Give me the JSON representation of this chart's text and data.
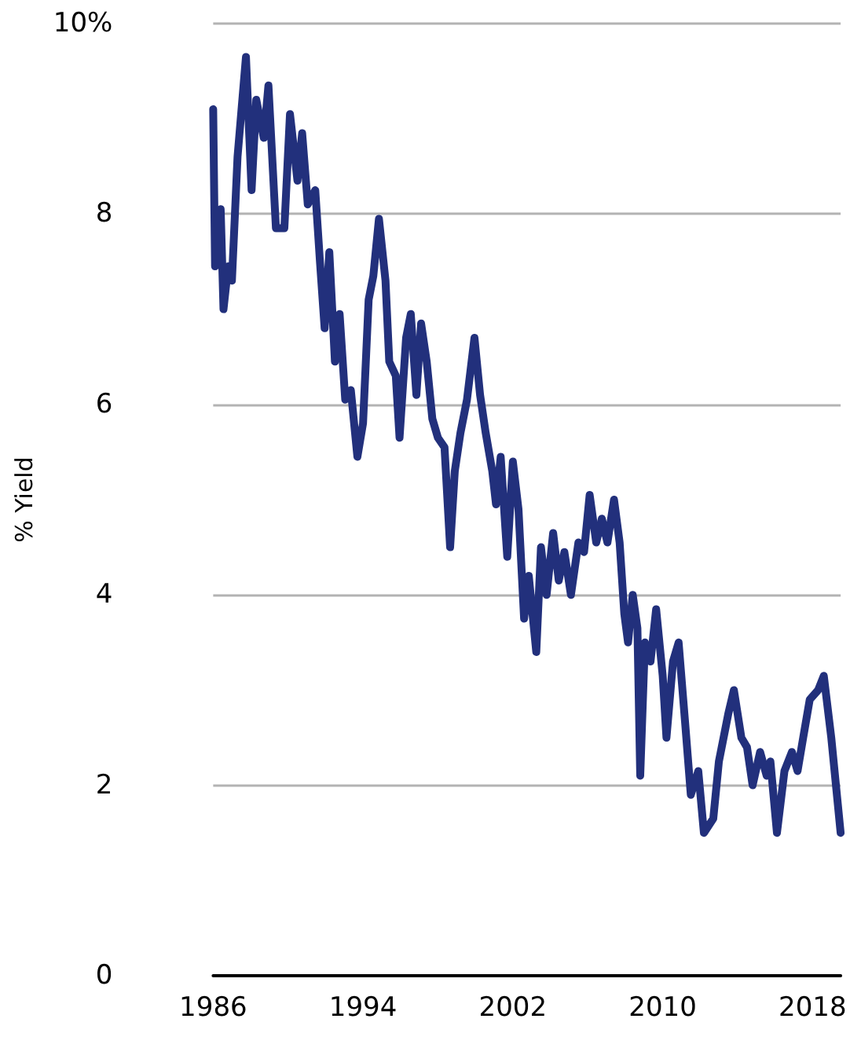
{
  "chart_data": {
    "type": "line",
    "ylabel": "% Yield",
    "x": [
      1986.0,
      1986.1,
      1986.4,
      1986.55,
      1986.8,
      1987.0,
      1987.3,
      1987.75,
      1988.05,
      1988.3,
      1988.7,
      1988.95,
      1989.35,
      1989.8,
      1990.1,
      1990.5,
      1990.75,
      1991.05,
      1991.45,
      1991.7,
      1991.95,
      1992.2,
      1992.5,
      1992.75,
      1993.05,
      1993.35,
      1993.7,
      1994.0,
      1994.3,
      1994.55,
      1994.85,
      1995.2,
      1995.4,
      1995.75,
      1995.95,
      1996.3,
      1996.55,
      1996.85,
      1997.1,
      1997.4,
      1997.7,
      1998.0,
      1998.35,
      1998.65,
      1998.9,
      1999.2,
      1999.55,
      1999.95,
      2000.25,
      2000.55,
      2000.9,
      2001.1,
      2001.35,
      2001.7,
      2002.0,
      2002.3,
      2002.6,
      2002.85,
      2003.25,
      2003.5,
      2003.8,
      2004.15,
      2004.45,
      2004.75,
      2005.1,
      2005.5,
      2005.8,
      2006.1,
      2006.45,
      2006.75,
      2007.05,
      2007.4,
      2007.7,
      2007.95,
      2008.15,
      2008.4,
      2008.65,
      2008.8,
      2009.05,
      2009.35,
      2009.65,
      2010.0,
      2010.2,
      2010.55,
      2010.85,
      2011.2,
      2011.5,
      2011.9,
      2012.2,
      2012.7,
      2013.0,
      2013.5,
      2013.8,
      2014.2,
      2014.5,
      2014.8,
      2015.2,
      2015.55,
      2015.75,
      2016.1,
      2016.5,
      2016.9,
      2017.2,
      2017.5,
      2017.85,
      2018.3,
      2018.6,
      2019.0,
      2019.5
    ],
    "series": [
      {
        "color": "#22307c",
        "values": [
          9.1,
          7.45,
          8.05,
          7.0,
          7.45,
          7.3,
          8.6,
          9.65,
          8.25,
          9.2,
          8.8,
          9.35,
          7.85,
          7.85,
          9.05,
          8.35,
          8.85,
          8.1,
          8.25,
          7.5,
          6.8,
          7.6,
          6.45,
          6.95,
          6.05,
          6.15,
          5.45,
          5.8,
          7.1,
          7.35,
          7.95,
          7.3,
          6.45,
          6.3,
          5.65,
          6.7,
          6.95,
          6.1,
          6.85,
          6.45,
          5.85,
          5.65,
          5.55,
          4.5,
          5.3,
          5.7,
          6.05,
          6.7,
          6.1,
          5.7,
          5.3,
          4.95,
          5.45,
          4.4,
          5.4,
          4.9,
          3.75,
          4.2,
          3.4,
          4.5,
          4.0,
          4.65,
          4.15,
          4.45,
          4.0,
          4.55,
          4.45,
          5.05,
          4.55,
          4.8,
          4.55,
          5.0,
          4.55,
          3.8,
          3.5,
          4.0,
          3.65,
          2.1,
          3.5,
          3.3,
          3.85,
          3.15,
          2.5,
          3.3,
          3.5,
          2.65,
          1.9,
          2.15,
          1.5,
          1.65,
          2.25,
          2.75,
          3.0,
          2.5,
          2.4,
          2.0,
          2.35,
          2.1,
          2.25,
          1.5,
          2.15,
          2.35,
          2.15,
          2.5,
          2.9,
          3.0,
          3.15,
          2.5,
          1.5
        ]
      }
    ],
    "xlim": [
      1986,
      2019.5
    ],
    "xticks": [
      1986,
      1994,
      2002,
      2010,
      2018
    ],
    "ylim": [
      0,
      10
    ],
    "yticks": [
      0,
      2,
      4,
      6,
      8,
      {
        "value": 10,
        "label": "10%"
      }
    ],
    "grid": "y",
    "marker": "none",
    "line_style": "solid"
  }
}
